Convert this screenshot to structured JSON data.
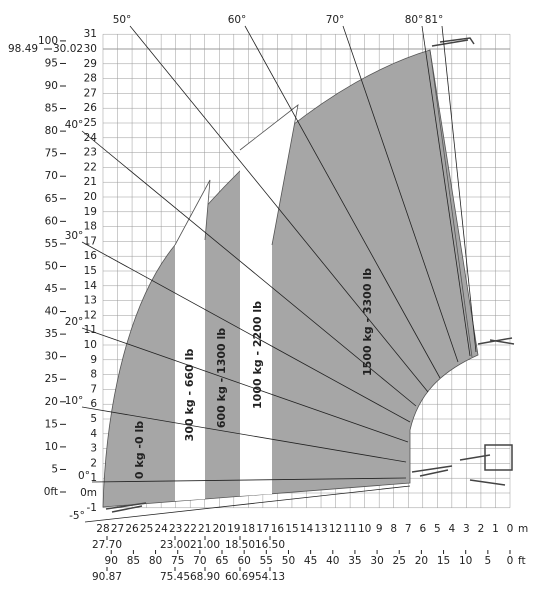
{
  "angles": [
    "50°",
    "60°",
    "70°",
    "80°",
    "81°",
    "40°",
    "30°",
    "20°",
    "10°",
    "0°",
    "-5°"
  ],
  "left_m_labels": [
    "31",
    "30",
    "29",
    "28",
    "27",
    "26",
    "25",
    "24",
    "23",
    "22",
    "21",
    "20",
    "19",
    "18",
    "17",
    "16",
    "15",
    "14",
    "13",
    "12",
    "11",
    "10",
    "9",
    "8",
    "7",
    "6",
    "5",
    "4",
    "3",
    "2",
    "1",
    "0m",
    "-1"
  ],
  "left_ft_labels": [
    "100",
    "95",
    "90",
    "85",
    "80",
    "75",
    "70",
    "65",
    "60",
    "55",
    "50",
    "45",
    "40",
    "35",
    "30",
    "25",
    "20",
    "15",
    "10",
    "5",
    "0ft"
  ],
  "max_height": {
    "ft": "98.49",
    "m": "30.02"
  },
  "bottom_m_labels": [
    "28",
    "27",
    "26",
    "25",
    "24",
    "23",
    "22",
    "21",
    "20",
    "19",
    "18",
    "17",
    "16",
    "15",
    "14",
    "13",
    "12",
    "11",
    "10",
    "9",
    "8",
    "7",
    "6",
    "5",
    "4",
    "3",
    "2",
    "1",
    "0"
  ],
  "bottom_m_unit": "m",
  "bottom_ft_labels": [
    "90",
    "85",
    "80",
    "75",
    "70",
    "65",
    "60",
    "55",
    "50",
    "45",
    "40",
    "35",
    "30",
    "25",
    "20",
    "15",
    "10",
    "5",
    "0"
  ],
  "bottom_ft_unit": "ft",
  "reach_m": [
    "27.70",
    "23.00",
    "21.00",
    "18.50",
    "16.50"
  ],
  "reach_ft": [
    "90.87",
    "75.45",
    "68.90",
    "60.69",
    "54.13"
  ],
  "zones": [
    "0 kg -0 lb",
    "300 kg - 660 lb",
    "600 kg - 1300 lb",
    "1000 kg - 2200 lb",
    "1500 kg - 3300 lb"
  ]
}
